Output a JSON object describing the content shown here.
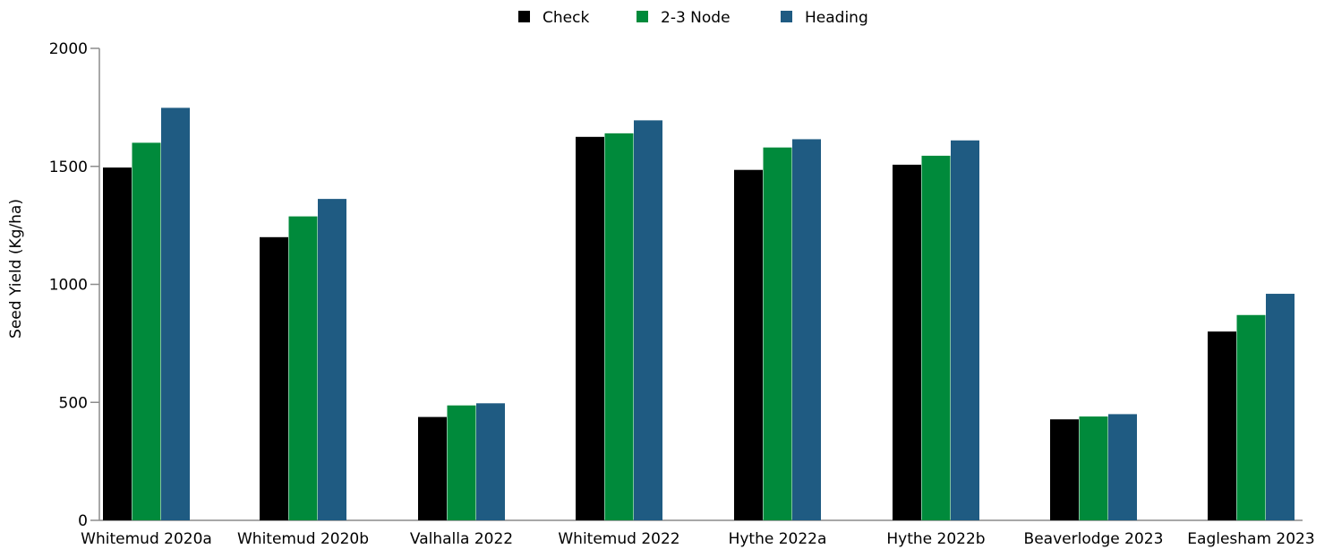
{
  "chart_data": {
    "type": "bar",
    "title": "",
    "xlabel": "",
    "ylabel": "Seed Yield (Kg/ha)",
    "ylim": [
      0,
      2000
    ],
    "yticks": [
      0,
      500,
      1000,
      1500,
      2000
    ],
    "grid": false,
    "legend_position": "top-center",
    "categories": [
      "Whitemud 2020a",
      "Whitemud 2020b",
      "Valhalla 2022",
      "Whitemud 2022",
      "Hythe 2022a",
      "Hythe 2022b",
      "Beaverlodge 2023",
      "Eaglesham 2023"
    ],
    "series": [
      {
        "name": "Check",
        "color": "#000000",
        "values": [
          1495,
          1200,
          438,
          1625,
          1485,
          1507,
          428,
          800
        ]
      },
      {
        "name": "2-3 Node",
        "color": "#008A3B",
        "values": [
          1600,
          1288,
          487,
          1640,
          1580,
          1545,
          440,
          870
        ]
      },
      {
        "name": "Heading",
        "color": "#1F5B82",
        "values": [
          1748,
          1362,
          496,
          1695,
          1615,
          1610,
          450,
          960
        ]
      }
    ]
  }
}
